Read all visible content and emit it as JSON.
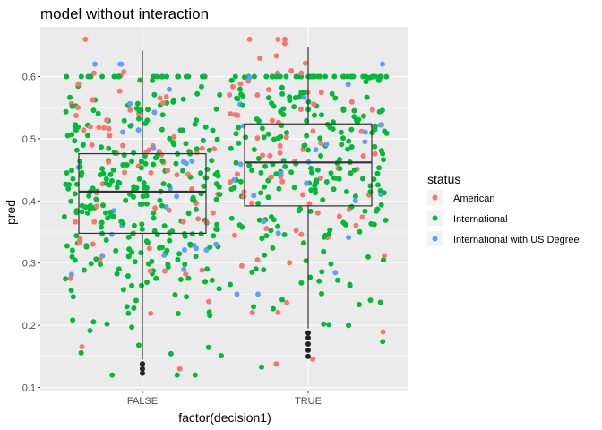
{
  "chart_data": {
    "type": "scatter",
    "subtype": "jittered points with boxplot overlay",
    "title": "model without interaction",
    "xlabel": "factor(decision1)",
    "ylabel": "pred",
    "categories": [
      "FALSE",
      "TRUE"
    ],
    "y_ticks": [
      "0.1",
      "0.2",
      "0.3",
      "0.4",
      "0.5",
      "0.6"
    ],
    "ylim": [
      0.095,
      0.68
    ],
    "grid": true,
    "legend": {
      "title": "status",
      "position": "right",
      "entries": [
        "American",
        "International",
        "International with US Degree"
      ]
    },
    "colors": {
      "American": "#F8766D",
      "International": "#00BA38",
      "International with US Degree": "#619CFF",
      "panel": "#EBEBEB",
      "outlier": "#222222"
    },
    "boxplots": [
      {
        "category": "FALSE",
        "whisker_low": 0.145,
        "q1": 0.348,
        "median": 0.415,
        "q3": 0.476,
        "whisker_high": 0.642,
        "outliers": [
          0.123,
          0.13,
          0.138
        ]
      },
      {
        "category": "TRUE",
        "whisker_low": 0.195,
        "q1": 0.392,
        "median": 0.462,
        "q3": 0.524,
        "whisker_high": 0.648,
        "outliers": [
          0.15,
          0.16,
          0.17,
          0.18,
          0.188
        ]
      }
    ],
    "series": [
      {
        "name": "American",
        "points_per_category": [
          75,
          80
        ],
        "range": [
          0.13,
          0.66
        ]
      },
      {
        "name": "International",
        "points_per_category": [
          300,
          250
        ],
        "range": [
          0.12,
          0.6
        ]
      },
      {
        "name": "International with US Degree",
        "points_per_category": [
          30,
          25
        ],
        "range": [
          0.25,
          0.62
        ]
      }
    ]
  }
}
